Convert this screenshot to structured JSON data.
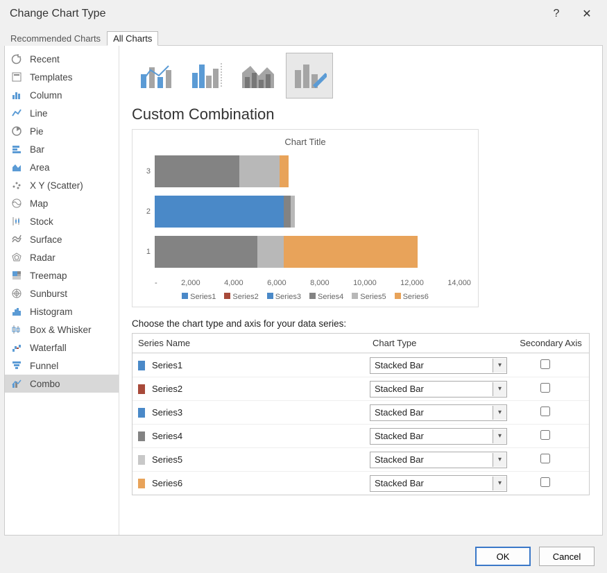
{
  "window": {
    "title": "Change Chart Type",
    "help": "?",
    "close": "✕"
  },
  "tabs": {
    "recommended": "Recommended Charts",
    "all": "All Charts"
  },
  "sidebar": {
    "items": [
      {
        "label": "Recent"
      },
      {
        "label": "Templates"
      },
      {
        "label": "Column"
      },
      {
        "label": "Line"
      },
      {
        "label": "Pie"
      },
      {
        "label": "Bar"
      },
      {
        "label": "Area"
      },
      {
        "label": "X Y (Scatter)"
      },
      {
        "label": "Map"
      },
      {
        "label": "Stock"
      },
      {
        "label": "Surface"
      },
      {
        "label": "Radar"
      },
      {
        "label": "Treemap"
      },
      {
        "label": "Sunburst"
      },
      {
        "label": "Histogram"
      },
      {
        "label": "Box & Whisker"
      },
      {
        "label": "Waterfall"
      },
      {
        "label": "Funnel"
      },
      {
        "label": "Combo"
      }
    ],
    "selected_index": 18
  },
  "section_title": "Custom Combination",
  "preview": {
    "title": "Chart Title",
    "type": "stacked_bar_horizontal",
    "x_max": 14000,
    "x_ticks": [
      "-",
      "2,000",
      "4,000",
      "6,000",
      "8,000",
      "10,000",
      "12,000",
      "14,000"
    ],
    "y_labels": [
      "3",
      "2",
      "1"
    ],
    "rows": [
      {
        "cat": "3",
        "segments": [
          {
            "v": 3800,
            "c": "#838383"
          },
          {
            "v": 1800,
            "c": "#b8b8b8"
          },
          {
            "v": 400,
            "c": "#e8a35a"
          }
        ]
      },
      {
        "cat": "2",
        "segments": [
          {
            "v": 5800,
            "c": "#4a89c8"
          },
          {
            "v": 300,
            "c": "#838383"
          },
          {
            "v": 200,
            "c": "#b8b8b8"
          }
        ]
      },
      {
        "cat": "1",
        "segments": [
          {
            "v": 4600,
            "c": "#838383"
          },
          {
            "v": 1200,
            "c": "#b8b8b8"
          },
          {
            "v": 6000,
            "c": "#e8a35a"
          }
        ]
      }
    ],
    "legend": [
      {
        "label": "Series1",
        "c": "#4a89c8"
      },
      {
        "label": "Series2",
        "c": "#a84a3a"
      },
      {
        "label": "Series3",
        "c": "#4a89c8"
      },
      {
        "label": "Series4",
        "c": "#838383"
      },
      {
        "label": "Series5",
        "c": "#b8b8b8"
      },
      {
        "label": "Series6",
        "c": "#e8a35a"
      }
    ]
  },
  "instruction": "Choose the chart type and axis for your data series:",
  "table": {
    "headers": {
      "name": "Series Name",
      "type": "Chart Type",
      "axis": "Secondary Axis"
    },
    "rows": [
      {
        "name": "Series1",
        "color": "#4a89c8",
        "type": "Stacked Bar",
        "secondary": false
      },
      {
        "name": "Series2",
        "color": "#a84a3a",
        "type": "Stacked Bar",
        "secondary": false
      },
      {
        "name": "Series3",
        "color": "#4a89c8",
        "type": "Stacked Bar",
        "secondary": false
      },
      {
        "name": "Series4",
        "color": "#838383",
        "type": "Stacked Bar",
        "secondary": false
      },
      {
        "name": "Series5",
        "color": "#c8c8c8",
        "type": "Stacked Bar",
        "secondary": false
      },
      {
        "name": "Series6",
        "color": "#e8a35a",
        "type": "Stacked Bar",
        "secondary": false
      }
    ]
  },
  "buttons": {
    "ok": "OK",
    "cancel": "Cancel"
  }
}
